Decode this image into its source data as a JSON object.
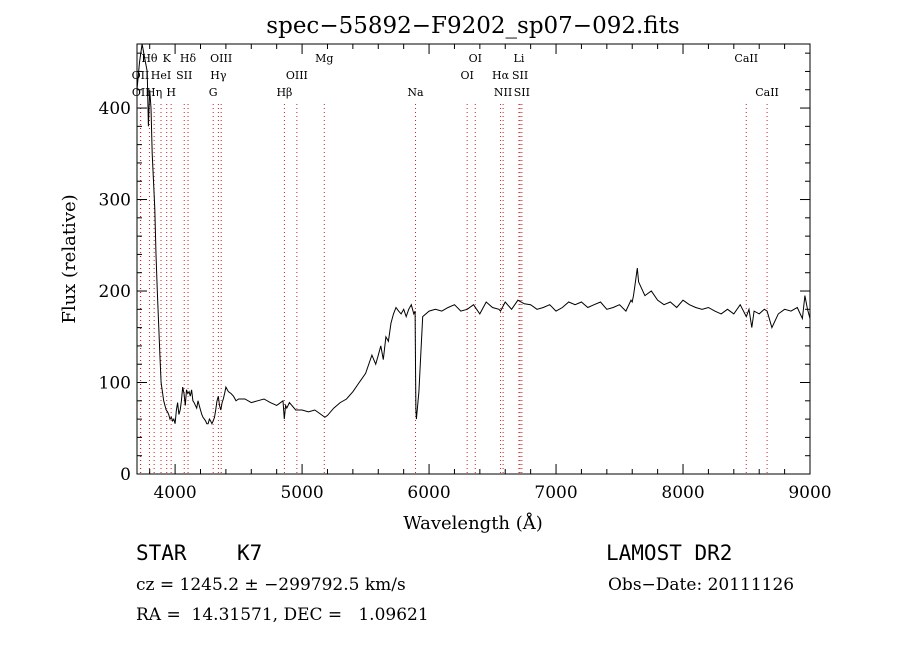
{
  "colors": {
    "spectrum": "#000000",
    "line_marker": "#cc2222",
    "axes": "#000000",
    "background": "#ffffff"
  },
  "chart_data": {
    "type": "line",
    "title": "spec−55892−F9202_sp07−092.fits",
    "xlabel": "Wavelength (Å)",
    "ylabel": "Flux (relative)",
    "xlim": [
      3700,
      9000
    ],
    "ylim": [
      0,
      470
    ],
    "xticks": [
      4000,
      5000,
      6000,
      7000,
      8000,
      9000
    ],
    "yticks": [
      0,
      100,
      200,
      300,
      400
    ],
    "grid": false,
    "series": [
      {
        "x": [
          3700,
          3720,
          3740,
          3760,
          3780,
          3790,
          3800,
          3810,
          3820,
          3830,
          3840,
          3850,
          3860,
          3870,
          3880,
          3890,
          3900,
          3910,
          3920,
          3930,
          3940,
          3950,
          3960,
          3970,
          3980,
          3990,
          4000,
          4010,
          4020,
          4030,
          4040,
          4050,
          4060,
          4070,
          4080,
          4090,
          4100,
          4110,
          4120,
          4130,
          4140,
          4150,
          4160,
          4170,
          4180,
          4190,
          4200,
          4210,
          4220,
          4230,
          4240,
          4250,
          4260,
          4270,
          4280,
          4290,
          4300,
          4310,
          4320,
          4330,
          4340,
          4350,
          4360,
          4370,
          4380,
          4390,
          4400,
          4420,
          4440,
          4460,
          4480,
          4500,
          4550,
          4600,
          4650,
          4700,
          4750,
          4800,
          4850,
          4860,
          4870,
          4880,
          4900,
          4950,
          5000,
          5050,
          5100,
          5150,
          5180,
          5200,
          5250,
          5300,
          5350,
          5400,
          5450,
          5500,
          5550,
          5580,
          5600,
          5620,
          5640,
          5660,
          5680,
          5700,
          5720,
          5740,
          5760,
          5780,
          5800,
          5820,
          5840,
          5860,
          5880,
          5890,
          5893,
          5896,
          5900,
          5920,
          5950,
          6000,
          6050,
          6100,
          6150,
          6200,
          6250,
          6300,
          6350,
          6400,
          6450,
          6500,
          6550,
          6563,
          6600,
          6650,
          6700,
          6750,
          6800,
          6850,
          6900,
          6950,
          7000,
          7050,
          7100,
          7150,
          7200,
          7250,
          7300,
          7350,
          7400,
          7450,
          7500,
          7550,
          7590,
          7600,
          7610,
          7620,
          7640,
          7650,
          7700,
          7750,
          7800,
          7850,
          7900,
          7950,
          8000,
          8050,
          8100,
          8150,
          8200,
          8250,
          8300,
          8350,
          8400,
          8450,
          8498,
          8520,
          8542,
          8560,
          8600,
          8640,
          8662,
          8700,
          8750,
          8800,
          8850,
          8900,
          8920,
          8940,
          8960,
          8980,
          9000
        ],
        "y": [
          420,
          450,
          470,
          455,
          440,
          380,
          420,
          400,
          350,
          320,
          290,
          240,
          200,
          165,
          130,
          100,
          90,
          80,
          75,
          70,
          68,
          65,
          60,
          62,
          58,
          60,
          55,
          70,
          78,
          65,
          70,
          80,
          95,
          88,
          75,
          92,
          88,
          90,
          85,
          92,
          80,
          78,
          75,
          72,
          80,
          75,
          70,
          65,
          62,
          60,
          58,
          55,
          55,
          60,
          58,
          55,
          58,
          62,
          70,
          80,
          85,
          75,
          70,
          78,
          82,
          88,
          95,
          90,
          88,
          85,
          80,
          82,
          82,
          78,
          80,
          82,
          78,
          75,
          80,
          60,
          75,
          72,
          78,
          70,
          70,
          68,
          70,
          65,
          62,
          64,
          72,
          78,
          82,
          90,
          100,
          110,
          130,
          120,
          130,
          140,
          125,
          150,
          145,
          165,
          175,
          182,
          178,
          175,
          180,
          172,
          180,
          185,
          175,
          178,
          120,
          70,
          60,
          90,
          172,
          178,
          180,
          178,
          182,
          185,
          178,
          180,
          185,
          175,
          188,
          182,
          180,
          178,
          188,
          180,
          190,
          186,
          185,
          180,
          182,
          185,
          178,
          182,
          188,
          185,
          188,
          182,
          185,
          188,
          180,
          182,
          185,
          178,
          190,
          188,
          195,
          205,
          225,
          210,
          195,
          200,
          190,
          185,
          188,
          182,
          190,
          185,
          182,
          180,
          182,
          178,
          175,
          180,
          175,
          185,
          172,
          180,
          160,
          178,
          175,
          180,
          178,
          160,
          175,
          180,
          178,
          182,
          176,
          170,
          195,
          180,
          170
        ]
      }
    ],
    "line_markers": [
      {
        "label": "Hθ",
        "x": 3798,
        "row": 1
      },
      {
        "label": "OII",
        "x": 3727,
        "row": 2
      },
      {
        "label": "OII",
        "x": 3729,
        "row": 3
      },
      {
        "label": "K",
        "x": 3934,
        "row": 1
      },
      {
        "label": "HeI",
        "x": 3889,
        "row": 2
      },
      {
        "label": "Hη",
        "x": 3835,
        "row": 3
      },
      {
        "label": "Hδ",
        "x": 4102,
        "row": 1
      },
      {
        "label": "SII",
        "x": 4072,
        "row": 2
      },
      {
        "label": "H",
        "x": 3969,
        "row": 3
      },
      {
        "label": "OIII",
        "x": 4363,
        "row": 1
      },
      {
        "label": "Hγ",
        "x": 4341,
        "row": 2
      },
      {
        "label": "G",
        "x": 4300,
        "row": 3
      },
      {
        "label": "Mg",
        "x": 5175,
        "row": 1
      },
      {
        "label": "OIII",
        "x": 4959,
        "row": 2
      },
      {
        "label": "Hβ",
        "x": 4861,
        "row": 3
      },
      {
        "label": "Na",
        "x": 5893,
        "row": 3
      },
      {
        "label": "OI",
        "x": 6364,
        "row": 1
      },
      {
        "label": "OI",
        "x": 6300,
        "row": 2
      },
      {
        "label": "NII",
        "x": 6583,
        "row": 3
      },
      {
        "label": "Li",
        "x": 6708,
        "row": 1
      },
      {
        "label": "Hα",
        "x": 6563,
        "row": 2
      },
      {
        "label": "SII",
        "x": 6717,
        "row": 2
      },
      {
        "label": "SII",
        "x": 6731,
        "row": 3
      },
      {
        "label": "CaII",
        "x": 8498,
        "row": 1
      },
      {
        "label": "CaII",
        "x": 8662,
        "row": 3
      }
    ]
  },
  "info": {
    "object_class": "STAR",
    "subclass": "K7",
    "survey": "LAMOST DR2",
    "cz_line": "cz = 1245.2 ± −299792.5 km/s",
    "obs_date_line": "Obs−Date: 20111126",
    "coords_line": "RA =  14.31571, DEC =   1.09621"
  }
}
